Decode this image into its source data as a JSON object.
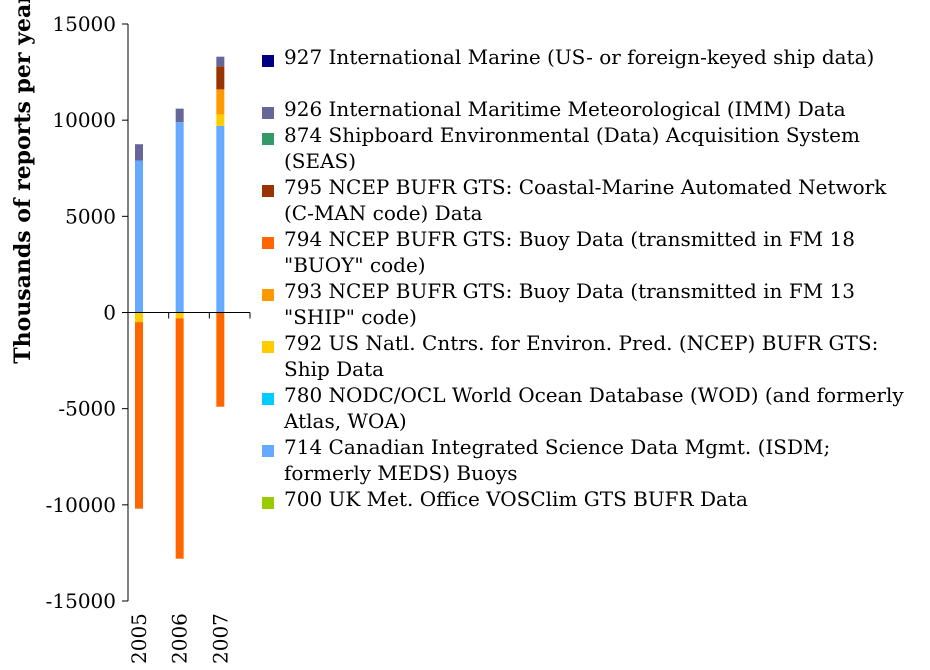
{
  "chart_data": {
    "type": "bar",
    "stacked": true,
    "categories": [
      "2005",
      "2006",
      "2007"
    ],
    "ylabel": "Thousands of reports per year",
    "ylim": [
      -15000,
      15000
    ],
    "yticks": [
      "15000",
      "10000",
      "5000",
      "0",
      "-5000",
      "-10000",
      "-15000"
    ],
    "series": [
      {
        "name": "700 UK Met. Office VOSClim GTS BUFR Data",
        "color": "#99cc00",
        "values": [
          0,
          0,
          0
        ]
      },
      {
        "name": "714 Canadian Integrated Science Data Mgmt. (ISDM; formerly MEDS) Buoys",
        "color": "#66aaff",
        "values": [
          7900,
          9900,
          9700
        ]
      },
      {
        "name": "780 NODC/OCL World Ocean Database (WOD) (and formerly Atlas, WOA)",
        "color": "#00ccff",
        "values": [
          0,
          0,
          0
        ]
      },
      {
        "name": "792 US Natl. Cntrs. for Environ. Pred. (NCEP) BUFR GTS: Ship Data",
        "color": "#ffcc00",
        "values": [
          -500,
          -300,
          600
        ]
      },
      {
        "name": "793 NCEP BUFR GTS: Buoy Data (transmitted in FM 13 \"SHIP\" code)",
        "color": "#ff9900",
        "values": [
          0,
          0,
          1300
        ]
      },
      {
        "name": "794 NCEP BUFR GTS: Buoy Data (transmitted in FM 18 \"BUOY\" code)",
        "color": "#ff6600",
        "values": [
          -9700,
          -12500,
          -4900
        ]
      },
      {
        "name": "795 NCEP BUFR GTS: Coastal-Marine Automated Network (C-MAN code) Data",
        "color": "#993300",
        "values": [
          0,
          0,
          1200
        ]
      },
      {
        "name": "874 Shipboard Environmental (Data) Acquisition System (SEAS)",
        "color": "#339966",
        "values": [
          0,
          0,
          0
        ]
      },
      {
        "name": "926 International Maritime Meteorological (IMM) Data",
        "color": "#666699",
        "values": [
          850,
          700,
          500
        ]
      },
      {
        "name": "927 International Marine (US- or foreign-keyed ship data)",
        "color": "#000080",
        "values": [
          0,
          0,
          0
        ]
      }
    ],
    "legend_order": [
      9,
      8,
      7,
      6,
      5,
      4,
      3,
      2,
      1,
      0
    ],
    "legend": {
      "position": "right"
    },
    "grid": false
  }
}
